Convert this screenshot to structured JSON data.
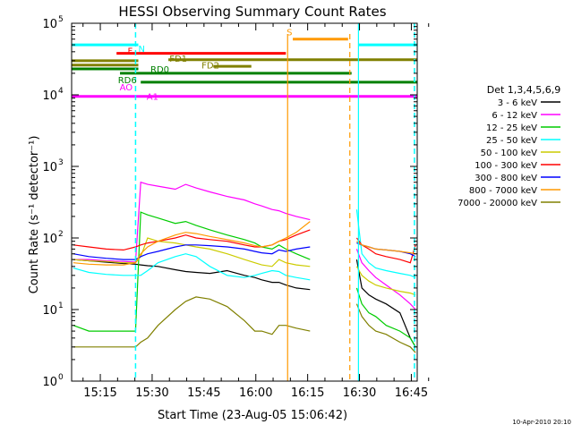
{
  "chart_data": {
    "type": "line",
    "title": "HESSI Observing Summary Count Rates",
    "xlabel": "Start Time (23-Aug-05 15:06:42)",
    "ylabel": "Count Rate (s⁻¹ detector⁻¹)",
    "yscale": "log",
    "ylim": [
      1,
      100000
    ],
    "xlim_minutes": [
      0,
      100
    ],
    "x_ticks": [
      {
        "label": "15:15",
        "t": 8.3
      },
      {
        "label": "15:30",
        "t": 23.3
      },
      {
        "label": "15:45",
        "t": 38.3
      },
      {
        "label": "16:00",
        "t": 53.3
      },
      {
        "label": "16:15",
        "t": 68.3
      },
      {
        "label": "16:30",
        "t": 83.3
      },
      {
        "label": "16:45",
        "t": 98.3
      }
    ],
    "y_ticks": [
      {
        "base": "10",
        "exp": "0",
        "value": 1
      },
      {
        "base": "10",
        "exp": "1",
        "value": 10
      },
      {
        "base": "10",
        "exp": "2",
        "value": 100
      },
      {
        "base": "10",
        "exp": "3",
        "value": 1000
      },
      {
        "base": "10",
        "exp": "4",
        "value": 10000
      },
      {
        "base": "10",
        "exp": "5",
        "value": 100000
      }
    ],
    "legend_title": "Det 1,3,4,5,6,9",
    "legend_position": "right",
    "series": [
      {
        "name": "3 - 6 keV",
        "color": "#000000",
        "x": [
          0.5,
          5,
          10,
          15,
          18.5,
          20,
          22,
          25,
          30,
          33,
          36,
          40,
          45,
          50,
          53,
          55,
          58,
          60,
          62,
          65,
          69,
          82.5,
          84,
          86,
          88,
          91,
          95,
          98,
          99.5
        ],
        "y": [
          50,
          48,
          46,
          44,
          43,
          42,
          41,
          40,
          36,
          34,
          33,
          32,
          35,
          30,
          28,
          26,
          24,
          24,
          22,
          20,
          19,
          50,
          20,
          16,
          14,
          12,
          9,
          4,
          3
        ]
      },
      {
        "name": "6 - 12 keV",
        "color": "#ff00ff",
        "x": [
          0.5,
          5,
          10,
          15,
          18.5,
          20,
          22,
          25,
          30,
          33,
          36,
          40,
          45,
          50,
          53,
          55,
          58,
          60,
          62,
          65,
          69,
          82.5,
          84,
          86,
          88,
          91,
          95,
          98,
          99.5
        ],
        "y": [
          50,
          50,
          48,
          47,
          46,
          600,
          560,
          530,
          480,
          560,
          500,
          440,
          380,
          340,
          300,
          280,
          250,
          240,
          220,
          200,
          180,
          70,
          45,
          35,
          28,
          22,
          16,
          12,
          10
        ]
      },
      {
        "name": "12 - 25 keV",
        "color": "#00cc00",
        "x": [
          0.5,
          5,
          10,
          15,
          18.5,
          20,
          22,
          25,
          30,
          33,
          36,
          40,
          45,
          50,
          53,
          55,
          58,
          60,
          62,
          65,
          69,
          82.5,
          84,
          86,
          88,
          91,
          95,
          98,
          99.5
        ],
        "y": [
          6,
          5,
          5,
          5,
          5,
          230,
          210,
          190,
          160,
          170,
          150,
          130,
          110,
          95,
          85,
          75,
          70,
          80,
          70,
          60,
          50,
          20,
          12,
          9,
          8,
          6,
          5,
          4,
          3
        ]
      },
      {
        "name": "25 - 50 keV",
        "color": "#00ffff",
        "x": [
          0.5,
          5,
          10,
          15,
          18.5,
          20,
          22,
          25,
          30,
          33,
          36,
          40,
          45,
          50,
          53,
          55,
          58,
          60,
          62,
          65,
          69,
          82.5,
          84,
          86,
          88,
          91,
          95,
          98,
          99.5
        ],
        "y": [
          38,
          33,
          31,
          30,
          30,
          30,
          35,
          45,
          55,
          60,
          55,
          40,
          30,
          28,
          30,
          32,
          35,
          34,
          30,
          28,
          26,
          250,
          60,
          45,
          38,
          35,
          32,
          30,
          28
        ]
      },
      {
        "name": "50 - 100 keV",
        "color": "#cccc00",
        "x": [
          0.5,
          5,
          10,
          15,
          18.5,
          20,
          22,
          25,
          30,
          33,
          36,
          40,
          45,
          50,
          53,
          55,
          58,
          60,
          62,
          65,
          69,
          82.5,
          84,
          86,
          88,
          91,
          95,
          98,
          99.5
        ],
        "y": [
          50,
          48,
          47,
          45,
          45,
          55,
          100,
          90,
          85,
          80,
          75,
          70,
          60,
          50,
          45,
          42,
          40,
          50,
          45,
          42,
          40,
          40,
          30,
          25,
          22,
          20,
          18,
          17,
          16
        ]
      },
      {
        "name": "100 - 300 keV",
        "color": "#ff0000",
        "x": [
          0.5,
          5,
          10,
          15,
          18.5,
          20,
          22,
          25,
          30,
          33,
          36,
          40,
          45,
          50,
          53,
          55,
          58,
          60,
          62,
          65,
          69,
          82.5,
          84,
          86,
          88,
          91,
          95,
          98,
          99.5
        ],
        "y": [
          80,
          75,
          70,
          68,
          75,
          80,
          85,
          90,
          100,
          110,
          100,
          95,
          90,
          80,
          75,
          75,
          80,
          90,
          95,
          110,
          130,
          100,
          80,
          70,
          60,
          55,
          50,
          45,
          80
        ]
      },
      {
        "name": "300 - 800 keV",
        "color": "#0000ff",
        "x": [
          0.5,
          5,
          10,
          15,
          18.5,
          20,
          22,
          25,
          30,
          33,
          36,
          40,
          45,
          50,
          53,
          55,
          58,
          60,
          62,
          65,
          69,
          82.5,
          84,
          86,
          88,
          91,
          95,
          98,
          99.5
        ],
        "y": [
          60,
          55,
          52,
          50,
          50,
          55,
          60,
          65,
          75,
          80,
          80,
          78,
          75,
          70,
          65,
          62,
          60,
          68,
          65,
          70,
          75,
          85,
          80,
          75,
          70,
          68,
          65,
          60,
          55
        ]
      },
      {
        "name": "800 - 7000 keV",
        "color": "#ff9900",
        "x": [
          0.5,
          5,
          10,
          15,
          18.5,
          20,
          22,
          25,
          30,
          33,
          36,
          40,
          45,
          50,
          53,
          55,
          58,
          60,
          62,
          65,
          69,
          82.5,
          84,
          86,
          88,
          91,
          95,
          98,
          99.5
        ],
        "y": [
          45,
          43,
          42,
          42,
          45,
          60,
          75,
          90,
          110,
          120,
          115,
          105,
          95,
          85,
          78,
          75,
          80,
          90,
          100,
          120,
          170,
          90,
          80,
          75,
          70,
          68,
          65,
          62,
          60
        ]
      },
      {
        "name": "7000 - 20000 keV",
        "color": "#808000",
        "x": [
          0.5,
          5,
          10,
          15,
          18.5,
          20,
          22,
          25,
          30,
          33,
          36,
          40,
          45,
          50,
          53,
          55,
          58,
          60,
          62,
          65,
          69,
          82.5,
          84,
          86,
          88,
          91,
          95,
          98,
          99.5
        ],
        "y": [
          3,
          3,
          3,
          3,
          3,
          3.5,
          4,
          6,
          10,
          13,
          15,
          14,
          11,
          7,
          5,
          5,
          4.5,
          6,
          6,
          5.5,
          5,
          12,
          8,
          6,
          5,
          4.5,
          3.5,
          3,
          2.5
        ]
      }
    ],
    "annotations": [
      {
        "text": "N",
        "t": 19.3,
        "y_value": 40000,
        "color": "#00ffff"
      },
      {
        "text": "S",
        "t": 62.2,
        "y_value": 68000,
        "color": "#ff9900"
      },
      {
        "text": "F",
        "t": 16.2,
        "y_value": 37000,
        "color": "#ff0000"
      },
      {
        "text": "FD1",
        "t": 28.3,
        "y_value": 29000,
        "color": "#808000"
      },
      {
        "text": "FD2",
        "t": 37.6,
        "y_value": 23500,
        "color": "#808000"
      },
      {
        "text": "RD0",
        "t": 22.8,
        "y_value": 20500,
        "color": "#008000"
      },
      {
        "text": "RD6",
        "t": 13.4,
        "y_value": 14500,
        "color": "#008000"
      },
      {
        "text": "AO",
        "t": 13.9,
        "y_value": 11500,
        "color": "#ff00ff"
      },
      {
        "text": "A1",
        "t": 21.7,
        "y_value": 8500,
        "color": "#ff00ff"
      }
    ],
    "footer_date": "10-Apr-2010 20:10"
  }
}
